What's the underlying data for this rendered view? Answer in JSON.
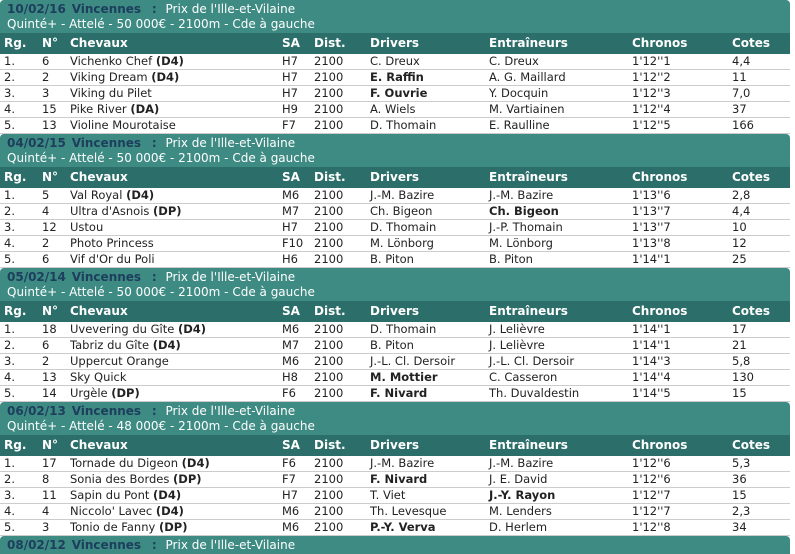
{
  "colors": {
    "band_bg": "#3E8B84",
    "table_header_bg": "#2C6E69",
    "date_text": "#1D3E5C",
    "highlight": "#FFA200",
    "row_text": "#222222",
    "row_border": "#CCCCCC"
  },
  "columns": [
    {
      "label": "Rg.",
      "slug": "rank"
    },
    {
      "label": "N°",
      "slug": "number"
    },
    {
      "label": "Chevaux",
      "slug": "horse"
    },
    {
      "label": "SA",
      "slug": "sa"
    },
    {
      "label": "Dist.",
      "slug": "dist"
    },
    {
      "label": "Drivers",
      "slug": "driver"
    },
    {
      "label": "Entraîneurs",
      "slug": "trainer"
    },
    {
      "label": "Chronos",
      "slug": "chrono"
    },
    {
      "label": "Cotes",
      "slug": "odds"
    }
  ],
  "sections": [
    {
      "date": "10/02/16",
      "venue": "Vincennes",
      "separator": ":",
      "race": "Prix de l'Ille-et-Vilaine",
      "details": "Quinté+ - Attelé - 50 000€ - 2100m - Cde à gauche",
      "rows": [
        {
          "rank": "1.",
          "number": "6",
          "horse": "Vichenko Chef",
          "tag": "(D4)",
          "sa": "H7",
          "dist": "2100",
          "driver": "C. Dreux",
          "driver_hl": false,
          "trainer": "C. Dreux",
          "trainer_hl": false,
          "chrono": "1'12''1",
          "odds": "4,4"
        },
        {
          "rank": "2.",
          "number": "2",
          "horse": "Viking Dream",
          "tag": "(D4)",
          "sa": "H7",
          "dist": "2100",
          "driver": "E. Raffin",
          "driver_hl": true,
          "trainer": "A. G. Maillard",
          "trainer_hl": false,
          "chrono": "1'12''2",
          "odds": "11"
        },
        {
          "rank": "3.",
          "number": "3",
          "horse": "Viking du Pilet",
          "tag": "",
          "sa": "H7",
          "dist": "2100",
          "driver": "F. Ouvrie",
          "driver_hl": true,
          "trainer": "Y. Docquin",
          "trainer_hl": false,
          "chrono": "1'12''3",
          "odds": "7,0"
        },
        {
          "rank": "4.",
          "number": "15",
          "horse": "Pike River",
          "tag": "(DA)",
          "sa": "H9",
          "dist": "2100",
          "driver": "A. Wiels",
          "driver_hl": false,
          "trainer": "M. Vartiainen",
          "trainer_hl": false,
          "chrono": "1'12''4",
          "odds": "37"
        },
        {
          "rank": "5.",
          "number": "13",
          "horse": "Violine Mourotaise",
          "tag": "",
          "sa": "F7",
          "dist": "2100",
          "driver": "D. Thomain",
          "driver_hl": false,
          "trainer": "E. Raulline",
          "trainer_hl": false,
          "chrono": "1'12''5",
          "odds": "166"
        }
      ]
    },
    {
      "date": "04/02/15",
      "venue": "Vincennes",
      "separator": ":",
      "race": "Prix de l'Ille-et-Vilaine",
      "details": "Quinté+ - Attelé - 50 000€ - 2100m - Cde à gauche",
      "rows": [
        {
          "rank": "1.",
          "number": "5",
          "horse": "Val Royal",
          "tag": "(D4)",
          "sa": "M6",
          "dist": "2100",
          "driver": "J.-M. Bazire",
          "driver_hl": false,
          "trainer": "J.-M. Bazire",
          "trainer_hl": false,
          "chrono": "1'13''6",
          "odds": "2,8"
        },
        {
          "rank": "2.",
          "number": "4",
          "horse": "Ultra d'Asnois",
          "tag": "(DP)",
          "sa": "M7",
          "dist": "2100",
          "driver": "Ch. Bigeon",
          "driver_hl": false,
          "trainer": "Ch. Bigeon",
          "trainer_hl": true,
          "chrono": "1'13''7",
          "odds": "4,4"
        },
        {
          "rank": "3.",
          "number": "12",
          "horse": "Ustou",
          "tag": "",
          "sa": "H7",
          "dist": "2100",
          "driver": "D. Thomain",
          "driver_hl": false,
          "trainer": "J.-P. Thomain",
          "trainer_hl": false,
          "chrono": "1'13''7",
          "odds": "10"
        },
        {
          "rank": "4.",
          "number": "2",
          "horse": "Photo Princess",
          "tag": "",
          "sa": "F10",
          "dist": "2100",
          "driver": "M. Lönborg",
          "driver_hl": false,
          "trainer": "M. Lönborg",
          "trainer_hl": false,
          "chrono": "1'13''8",
          "odds": "12"
        },
        {
          "rank": "5.",
          "number": "6",
          "horse": "Vif d'Or du Poli",
          "tag": "",
          "sa": "H6",
          "dist": "2100",
          "driver": "B. Piton",
          "driver_hl": false,
          "trainer": "B. Piton",
          "trainer_hl": false,
          "chrono": "1'14''1",
          "odds": "25"
        }
      ]
    },
    {
      "date": "05/02/14",
      "venue": "Vincennes",
      "separator": ":",
      "race": "Prix de l'Ille-et-Vilaine",
      "details": "Quinté+ - Attelé - 50 000€ - 2100m - Cde à gauche",
      "rows": [
        {
          "rank": "1.",
          "number": "18",
          "horse": "Uvevering du Gîte",
          "tag": "(D4)",
          "sa": "M6",
          "dist": "2100",
          "driver": "D. Thomain",
          "driver_hl": false,
          "trainer": "J. Lelièvre",
          "trainer_hl": false,
          "chrono": "1'14''1",
          "odds": "17"
        },
        {
          "rank": "2.",
          "number": "6",
          "horse": "Tabriz du Gîte",
          "tag": "(D4)",
          "sa": "M7",
          "dist": "2100",
          "driver": "B. Piton",
          "driver_hl": false,
          "trainer": "J. Lelièvre",
          "trainer_hl": false,
          "chrono": "1'14''1",
          "odds": "21"
        },
        {
          "rank": "3.",
          "number": "2",
          "horse": "Uppercut Orange",
          "tag": "",
          "sa": "M6",
          "dist": "2100",
          "driver": "J.-L. Cl. Dersoir",
          "driver_hl": false,
          "trainer": "J.-L. Cl. Dersoir",
          "trainer_hl": false,
          "chrono": "1'14''3",
          "odds": "5,8"
        },
        {
          "rank": "4.",
          "number": "13",
          "horse": "Sky Quick",
          "tag": "",
          "sa": "H8",
          "dist": "2100",
          "driver": "M. Mottier",
          "driver_hl": true,
          "trainer": "C. Casseron",
          "trainer_hl": false,
          "chrono": "1'14''4",
          "odds": "130"
        },
        {
          "rank": "5.",
          "number": "14",
          "horse": "Urgèle",
          "tag": "(DP)",
          "sa": "F6",
          "dist": "2100",
          "driver": "F. Nivard",
          "driver_hl": true,
          "trainer": "Th. Duvaldestin",
          "trainer_hl": false,
          "chrono": "1'14''5",
          "odds": "15"
        }
      ]
    },
    {
      "date": "06/02/13",
      "venue": "Vincennes",
      "separator": ":",
      "race": "Prix de l'Ille-et-Vilaine",
      "details": "Quinté+ - Attelé - 48 000€ - 2100m - Cde à gauche",
      "rows": [
        {
          "rank": "1.",
          "number": "17",
          "horse": "Tornade du Digeon",
          "tag": "(D4)",
          "sa": "F6",
          "dist": "2100",
          "driver": "J.-M. Bazire",
          "driver_hl": false,
          "trainer": "J.-M. Bazire",
          "trainer_hl": false,
          "chrono": "1'12''6",
          "odds": "5,3"
        },
        {
          "rank": "2.",
          "number": "8",
          "horse": "Sonia des Bordes",
          "tag": "(DP)",
          "sa": "F7",
          "dist": "2100",
          "driver": "F. Nivard",
          "driver_hl": true,
          "trainer": "J. E. David",
          "trainer_hl": false,
          "chrono": "1'12''6",
          "odds": "36"
        },
        {
          "rank": "3.",
          "number": "11",
          "horse": "Sapin du Pont",
          "tag": "(D4)",
          "sa": "H7",
          "dist": "2100",
          "driver": "T. Viet",
          "driver_hl": false,
          "trainer": "J.-Y. Rayon",
          "trainer_hl": true,
          "chrono": "1'12''7",
          "odds": "15"
        },
        {
          "rank": "4.",
          "number": "4",
          "horse": "Niccolo' Lavec",
          "tag": "(D4)",
          "sa": "M6",
          "dist": "2100",
          "driver": "Th. Levesque",
          "driver_hl": false,
          "trainer": "M. Lenders",
          "trainer_hl": false,
          "chrono": "1'12''7",
          "odds": "2,3"
        },
        {
          "rank": "5.",
          "number": "3",
          "horse": "Tonio de Fanny",
          "tag": "(DP)",
          "sa": "M6",
          "dist": "2100",
          "driver": "P.-Y. Verva",
          "driver_hl": true,
          "trainer": "D. Herlem",
          "trainer_hl": false,
          "chrono": "1'12''8",
          "odds": "34"
        }
      ]
    },
    {
      "date": "08/02/12",
      "venue": "Vincennes",
      "separator": ":",
      "race": "Prix de l'Ille-et-Vilaine",
      "details": null,
      "rows": []
    }
  ]
}
